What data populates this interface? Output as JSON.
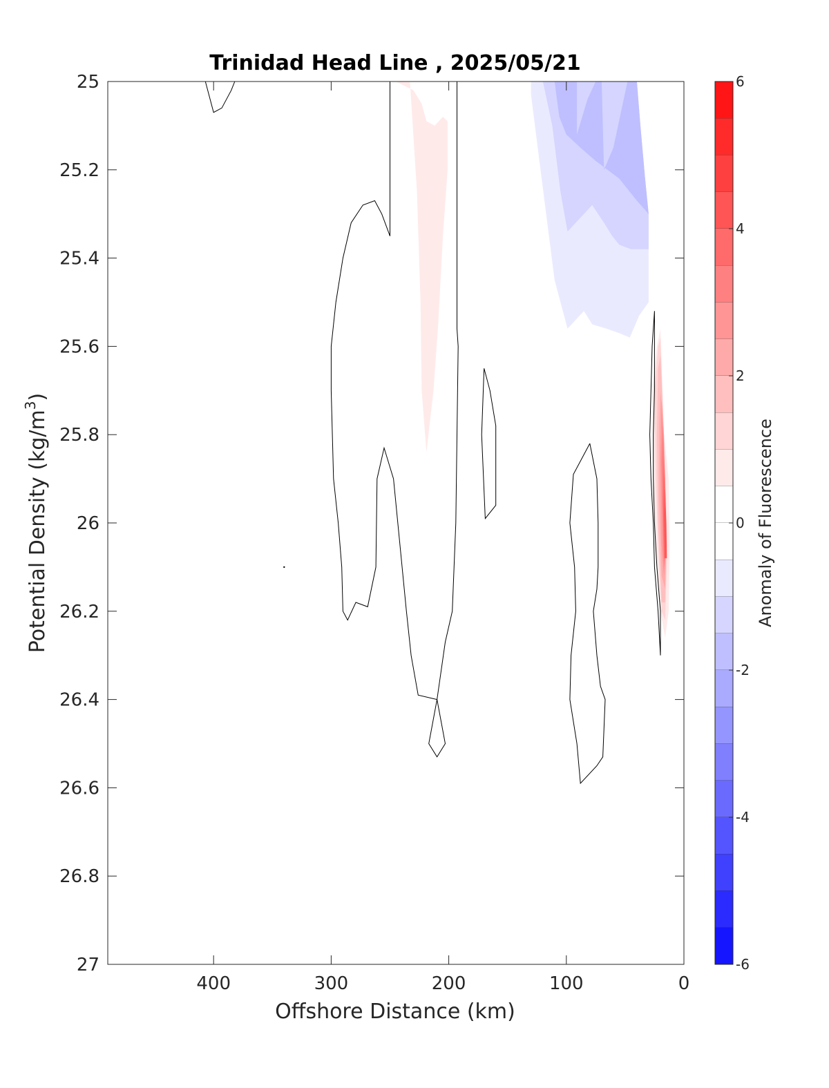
{
  "chart_data": {
    "type": "contour",
    "title": "Trinidad Head Line , 2025/05/21",
    "xlabel": "Offshore Distance (km)",
    "ylabel": "Potential Density (kg/m^3)",
    "ylabel_main": "Potential Density (kg/m",
    "ylabel_sup": "3",
    "ylabel_end": ")",
    "colorbar_label": "Anomaly of Fluorescence",
    "xlim": [
      490,
      0
    ],
    "x_reversed": true,
    "ylim": [
      25,
      27
    ],
    "y_reversed": true,
    "x_ticks": [
      400,
      300,
      200,
      100,
      0
    ],
    "x_tick_labels": [
      "400",
      "300",
      "200",
      "100",
      "0"
    ],
    "y_ticks": [
      25,
      25.2,
      25.4,
      25.6,
      25.8,
      26,
      26.2,
      26.4,
      26.6,
      26.8,
      27
    ],
    "y_tick_labels": [
      "25",
      "25.2",
      "25.4",
      "25.6",
      "25.8",
      "26",
      "26.2",
      "26.4",
      "26.6",
      "26.8",
      "27"
    ],
    "colorbar": {
      "range": [
        -6,
        6
      ],
      "step": 0.5,
      "ticks": [
        6,
        4,
        2,
        0,
        -2,
        -4,
        -6
      ],
      "tick_labels": [
        "6",
        "4",
        "2",
        "0",
        "-2",
        "-4",
        "-6"
      ],
      "neg_color": "#0000ff",
      "pos_color": "#ff0000",
      "zero_color": "#ffffff"
    },
    "filled_regions": [
      {
        "level": 0.5,
        "points": [
          [
            245,
            25.0
          ],
          [
            233,
            25.0
          ],
          [
            227,
            25.25
          ],
          [
            224,
            25.5
          ],
          [
            223,
            25.7
          ],
          [
            219,
            25.84
          ],
          [
            213,
            25.7
          ],
          [
            209,
            25.55
          ],
          [
            205,
            25.35
          ],
          [
            201,
            25.2
          ],
          [
            201,
            25.09
          ],
          [
            205,
            25.08
          ],
          [
            212,
            25.1
          ],
          [
            219,
            25.09
          ],
          [
            223,
            25.05
          ],
          [
            230,
            25.02
          ]
        ]
      },
      {
        "level": -0.5,
        "points": [
          [
            130,
            25.0
          ],
          [
            91,
            25.0
          ],
          [
            70,
            25.0
          ],
          [
            40,
            25.0
          ],
          [
            37,
            25.1
          ],
          [
            33,
            25.22
          ],
          [
            30,
            25.3
          ],
          [
            30,
            25.5
          ],
          [
            38,
            25.53
          ],
          [
            46,
            25.58
          ],
          [
            55,
            25.57
          ],
          [
            66,
            25.56
          ],
          [
            78,
            25.55
          ],
          [
            85,
            25.52
          ],
          [
            99,
            25.56
          ],
          [
            110,
            25.45
          ],
          [
            122,
            25.2
          ],
          [
            130,
            25.03
          ]
        ]
      },
      {
        "level": -1.0,
        "points": [
          [
            120,
            25.0
          ],
          [
            91,
            25.0
          ],
          [
            70,
            25.0
          ],
          [
            40,
            25.0
          ],
          [
            37,
            25.1
          ],
          [
            33,
            25.22
          ],
          [
            30,
            25.3
          ],
          [
            30,
            25.38
          ],
          [
            38,
            25.38
          ],
          [
            45,
            25.38
          ],
          [
            55,
            25.37
          ],
          [
            61,
            25.35
          ],
          [
            68,
            25.32
          ],
          [
            78,
            25.28
          ],
          [
            99,
            25.34
          ],
          [
            105,
            25.25
          ],
          [
            112,
            25.1
          ],
          [
            120,
            25.0
          ]
        ]
      },
      {
        "level": -1.5,
        "points": [
          [
            110,
            25.0
          ],
          [
            91,
            25.0
          ],
          [
            91,
            25.12
          ],
          [
            82,
            25.04
          ],
          [
            75,
            25.0
          ],
          [
            70,
            25.0
          ],
          [
            68,
            25.2
          ],
          [
            60,
            25.15
          ],
          [
            48,
            25.0
          ],
          [
            40,
            25.0
          ],
          [
            37,
            25.1
          ],
          [
            33,
            25.22
          ],
          [
            30,
            25.3
          ],
          [
            40,
            25.27
          ],
          [
            55,
            25.22
          ],
          [
            75,
            25.18
          ],
          [
            88,
            25.15
          ],
          [
            100,
            25.12
          ],
          [
            106,
            25.08
          ]
        ]
      },
      {
        "level": 0.5,
        "points": [
          [
            20,
            25.56
          ],
          [
            17,
            25.8
          ],
          [
            13,
            25.9
          ],
          [
            12,
            26.05
          ],
          [
            13,
            26.2
          ],
          [
            16,
            26.26
          ],
          [
            20,
            26.2
          ],
          [
            24,
            26.05
          ],
          [
            26,
            25.9
          ],
          [
            27,
            25.7
          ],
          [
            23,
            25.6
          ]
        ]
      },
      {
        "level": 1.0,
        "points": [
          [
            20,
            25.58
          ],
          [
            17,
            25.8
          ],
          [
            14,
            26.05
          ],
          [
            16,
            26.22
          ],
          [
            19,
            26.2
          ],
          [
            22,
            26.05
          ],
          [
            24,
            25.9
          ],
          [
            25,
            25.7
          ],
          [
            22,
            25.6
          ]
        ]
      },
      {
        "level": 1.5,
        "points": [
          [
            20,
            25.62
          ],
          [
            17,
            25.8
          ],
          [
            15,
            26.05
          ],
          [
            16,
            26.18
          ],
          [
            19,
            26.18
          ],
          [
            22,
            26.0
          ],
          [
            23,
            25.8
          ],
          [
            22,
            25.65
          ]
        ]
      },
      {
        "level": 2.0,
        "points": [
          [
            20,
            25.7
          ],
          [
            17,
            25.8
          ],
          [
            15,
            26.05
          ],
          [
            16,
            26.15
          ],
          [
            19,
            26.12
          ],
          [
            21,
            25.95
          ],
          [
            21,
            25.78
          ]
        ]
      },
      {
        "level": 2.5,
        "points": [
          [
            19,
            25.72
          ],
          [
            17,
            25.82
          ],
          [
            15,
            26.05
          ],
          [
            17,
            26.12
          ],
          [
            19,
            26.05
          ],
          [
            20,
            25.85
          ]
        ]
      },
      {
        "level": 3.0,
        "points": [
          [
            18,
            25.78
          ],
          [
            16,
            25.9
          ],
          [
            15,
            26.05
          ],
          [
            17,
            26.1
          ],
          [
            18,
            26.0
          ],
          [
            19,
            25.86
          ]
        ]
      },
      {
        "level": 3.5,
        "points": [
          [
            17,
            25.85
          ],
          [
            16,
            25.95
          ],
          [
            15,
            26.08
          ],
          [
            17,
            26.08
          ],
          [
            18,
            25.95
          ]
        ]
      },
      {
        "level": 4.0,
        "points": [
          [
            16,
            25.92
          ],
          [
            15,
            26.0
          ],
          [
            14.5,
            26.08
          ],
          [
            16,
            26.08
          ],
          [
            17,
            25.98
          ]
        ]
      }
    ],
    "zero_contours": [
      [
        [
          407,
          25.0
        ],
        [
          400,
          25.07
        ],
        [
          393,
          25.06
        ],
        [
          385,
          25.02
        ],
        [
          382,
          25.0
        ]
      ],
      [
        [
          250,
          25.0
        ],
        [
          250,
          25.35
        ],
        [
          257,
          25.3
        ],
        [
          263,
          25.27
        ],
        [
          273,
          25.28
        ],
        [
          283,
          25.32
        ],
        [
          290,
          25.4
        ],
        [
          296,
          25.5
        ],
        [
          300,
          25.6
        ],
        [
          300,
          25.7
        ],
        [
          298,
          25.9
        ],
        [
          294,
          26.0
        ],
        [
          291,
          26.1
        ],
        [
          290,
          26.2
        ],
        [
          286,
          26.22
        ],
        [
          279,
          26.18
        ],
        [
          269,
          26.19
        ],
        [
          262,
          26.1
        ],
        [
          261,
          25.9
        ],
        [
          255,
          25.83
        ],
        [
          247,
          25.9
        ],
        [
          236,
          26.2
        ],
        [
          232,
          26.3
        ],
        [
          226,
          26.39
        ],
        [
          210,
          26.4
        ],
        [
          203,
          26.27
        ],
        [
          197,
          26.2
        ],
        [
          194,
          26.0
        ],
        [
          192,
          25.6
        ],
        [
          193,
          25.56
        ],
        [
          193,
          25.0
        ]
      ],
      [
        [
          210,
          26.4
        ],
        [
          203,
          26.5
        ],
        [
          210,
          26.53
        ],
        [
          217,
          26.5
        ],
        [
          210,
          26.4
        ]
      ],
      [
        [
          170,
          25.65
        ],
        [
          172,
          25.8
        ],
        [
          169,
          25.99
        ],
        [
          160,
          25.96
        ],
        [
          160,
          25.78
        ],
        [
          165,
          25.7
        ],
        [
          170,
          25.65
        ]
      ],
      [
        [
          80,
          25.82
        ],
        [
          74,
          25.9
        ],
        [
          73,
          26.0
        ],
        [
          73,
          26.1
        ],
        [
          74,
          26.15
        ],
        [
          77,
          26.2
        ],
        [
          74,
          26.3
        ],
        [
          71,
          26.37
        ],
        [
          67,
          26.4
        ],
        [
          69,
          26.53
        ],
        [
          74,
          26.55
        ],
        [
          88,
          26.59
        ],
        [
          91,
          26.5
        ],
        [
          97,
          26.4
        ],
        [
          96,
          26.3
        ],
        [
          92,
          26.2
        ],
        [
          93,
          26.1
        ],
        [
          97,
          26.0
        ],
        [
          94,
          25.89
        ],
        [
          80,
          25.82
        ]
      ],
      [
        [
          25,
          25.52
        ],
        [
          27,
          25.6
        ],
        [
          29,
          25.8
        ],
        [
          28,
          25.9
        ],
        [
          26,
          26.0
        ],
        [
          25,
          26.1
        ],
        [
          22,
          26.2
        ],
        [
          20,
          26.3
        ],
        [
          20,
          26.2
        ],
        [
          23,
          26.1
        ],
        [
          25,
          26.0
        ],
        [
          26,
          25.9
        ],
        [
          26,
          25.8
        ],
        [
          25,
          25.7
        ],
        [
          25,
          25.6
        ],
        [
          25,
          25.52
        ]
      ]
    ],
    "stray_points": [
      [
        340,
        26.1
      ]
    ]
  }
}
